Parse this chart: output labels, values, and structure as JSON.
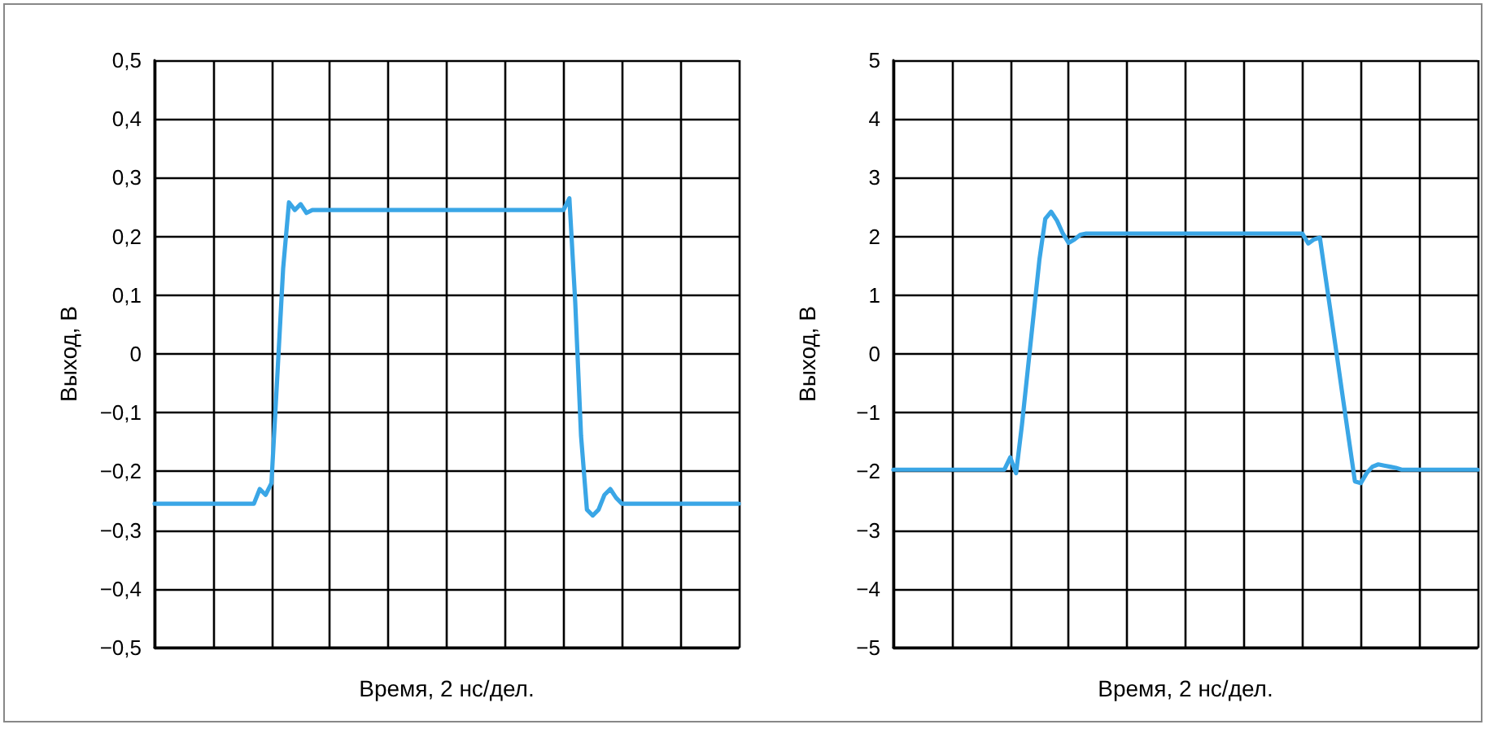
{
  "chart_data": [
    {
      "type": "line",
      "xlabel": "Время, 2 нс/дел.",
      "ylabel": "Выход, В",
      "tick_labels": "y",
      "grid": true,
      "line_style": "solid",
      "categories": [
        null,
        null,
        null,
        null,
        null,
        null,
        null,
        null,
        null,
        null,
        null,
        null,
        null,
        null,
        null,
        null,
        null,
        null,
        null,
        null,
        null,
        null,
        null,
        null,
        null,
        null,
        null,
        null,
        null,
        null,
        null,
        null,
        null,
        null,
        null,
        null,
        null,
        null,
        null,
        null,
        null,
        null,
        null,
        null,
        null,
        null,
        null,
        null,
        null,
        null,
        null,
        null,
        null,
        null,
        null,
        null,
        null,
        null,
        null,
        null,
        null,
        null,
        null,
        null,
        null,
        null,
        null,
        null,
        null,
        null,
        null,
        null,
        null,
        null,
        null,
        null,
        null,
        null,
        null,
        null,
        null,
        null,
        null,
        null,
        null,
        null,
        null,
        null,
        null,
        null,
        null,
        null,
        null,
        null,
        null,
        null,
        null,
        null,
        null,
        null,
        null
      ],
      "ylim": [
        -0.5,
        0.5
      ],
      "yticks": [
        {
          "value": -0.5,
          "label": "−0,5"
        },
        {
          "value": -0.4,
          "label": "−0,4"
        },
        {
          "value": -0.3,
          "label": "−0,3"
        },
        {
          "value": -0.2,
          "label": "−0,2"
        },
        {
          "value": -0.1,
          "label": "−0,1"
        },
        0,
        {
          "value": 0.1,
          "label": "0,1"
        },
        {
          "value": 0.2,
          "label": "0,2"
        },
        {
          "value": 0.3,
          "label": "0,3"
        },
        {
          "value": 0.4,
          "label": "0,4"
        },
        {
          "value": 0.5,
          "label": "0,5"
        }
      ],
      "series": [
        {
          "color": "#3aa6e6",
          "values": [
            -0.255,
            -0.255,
            -0.255,
            -0.255,
            -0.255,
            -0.255,
            -0.255,
            -0.255,
            -0.255,
            -0.255,
            -0.255,
            -0.255,
            -0.255,
            -0.255,
            -0.255,
            -0.255,
            -0.255,
            -0.255,
            -0.23,
            -0.24,
            -0.22,
            -0.039,
            0.145,
            0.258,
            0.245,
            0.255,
            0.24,
            0.245,
            0.245,
            0.245,
            0.245,
            0.245,
            0.245,
            0.245,
            0.245,
            0.245,
            0.245,
            0.245,
            0.245,
            0.245,
            0.245,
            0.245,
            0.245,
            0.245,
            0.245,
            0.245,
            0.245,
            0.245,
            0.245,
            0.245,
            0.245,
            0.245,
            0.245,
            0.245,
            0.245,
            0.245,
            0.245,
            0.245,
            0.245,
            0.245,
            0.245,
            0.245,
            0.245,
            0.245,
            0.245,
            0.245,
            0.245,
            0.245,
            0.245,
            0.245,
            0.245,
            0.265,
            0.088,
            -0.14,
            -0.265,
            -0.275,
            -0.265,
            -0.24,
            -0.23,
            -0.245,
            -0.255,
            -0.255,
            -0.255,
            -0.255,
            -0.255,
            -0.255,
            -0.255,
            -0.255,
            -0.255,
            -0.255,
            -0.255,
            -0.255,
            -0.255,
            -0.255,
            -0.255,
            -0.255,
            -0.255,
            -0.255,
            -0.255,
            -0.255,
            -0.255
          ]
        }
      ]
    },
    {
      "type": "line",
      "xlabel": "Время, 2 нс/дел.",
      "ylabel": "Выход, В",
      "tick_labels": "y",
      "grid": true,
      "line_style": "solid",
      "categories": [
        null,
        null,
        null,
        null,
        null,
        null,
        null,
        null,
        null,
        null,
        null,
        null,
        null,
        null,
        null,
        null,
        null,
        null,
        null,
        null,
        null,
        null,
        null,
        null,
        null,
        null,
        null,
        null,
        null,
        null,
        null,
        null,
        null,
        null,
        null,
        null,
        null,
        null,
        null,
        null,
        null,
        null,
        null,
        null,
        null,
        null,
        null,
        null,
        null,
        null,
        null,
        null,
        null,
        null,
        null,
        null,
        null,
        null,
        null,
        null,
        null,
        null,
        null,
        null,
        null,
        null,
        null,
        null,
        null,
        null,
        null,
        null,
        null,
        null,
        null,
        null,
        null,
        null,
        null,
        null,
        null,
        null,
        null,
        null,
        null,
        null,
        null,
        null,
        null,
        null,
        null,
        null,
        null,
        null,
        null,
        null,
        null,
        null,
        null,
        null,
        null
      ],
      "ylim": [
        -5,
        5
      ],
      "yticks": [
        {
          "value": -5,
          "label": "−5"
        },
        {
          "value": -4,
          "label": "−4"
        },
        {
          "value": -3,
          "label": "−3"
        },
        {
          "value": -2,
          "label": "−2"
        },
        {
          "value": -1,
          "label": "−1"
        },
        0,
        1,
        2,
        3,
        4,
        5
      ],
      "series": [
        {
          "color": "#3aa6e6",
          "values": [
            -1.97,
            -1.97,
            -1.97,
            -1.97,
            -1.97,
            -1.97,
            -1.97,
            -1.97,
            -1.97,
            -1.97,
            -1.97,
            -1.97,
            -1.97,
            -1.97,
            -1.97,
            -1.97,
            -1.97,
            -1.97,
            -1.97,
            -1.97,
            -1.76,
            -2.03,
            -1.21,
            -0.27,
            0.67,
            1.61,
            2.3,
            2.42,
            2.27,
            2.05,
            1.89,
            1.95,
            2.03,
            2.05,
            2.05,
            2.05,
            2.05,
            2.05,
            2.05,
            2.05,
            2.05,
            2.05,
            2.05,
            2.05,
            2.05,
            2.05,
            2.05,
            2.05,
            2.05,
            2.05,
            2.05,
            2.05,
            2.05,
            2.05,
            2.05,
            2.05,
            2.05,
            2.05,
            2.05,
            2.05,
            2.05,
            2.05,
            2.05,
            2.05,
            2.05,
            2.05,
            2.05,
            2.05,
            2.05,
            2.05,
            2.05,
            1.88,
            1.95,
            1.98,
            1.29,
            0.6,
            -0.09,
            -0.79,
            -1.48,
            -2.17,
            -2.2,
            -2.03,
            -1.92,
            -1.88,
            -1.9,
            -1.92,
            -1.94,
            -1.97,
            -1.97,
            -1.97,
            -1.97,
            -1.97,
            -1.97,
            -1.97,
            -1.97,
            -1.97,
            -1.97,
            -1.97,
            -1.97,
            -1.97,
            -1.97
          ]
        }
      ]
    }
  ]
}
